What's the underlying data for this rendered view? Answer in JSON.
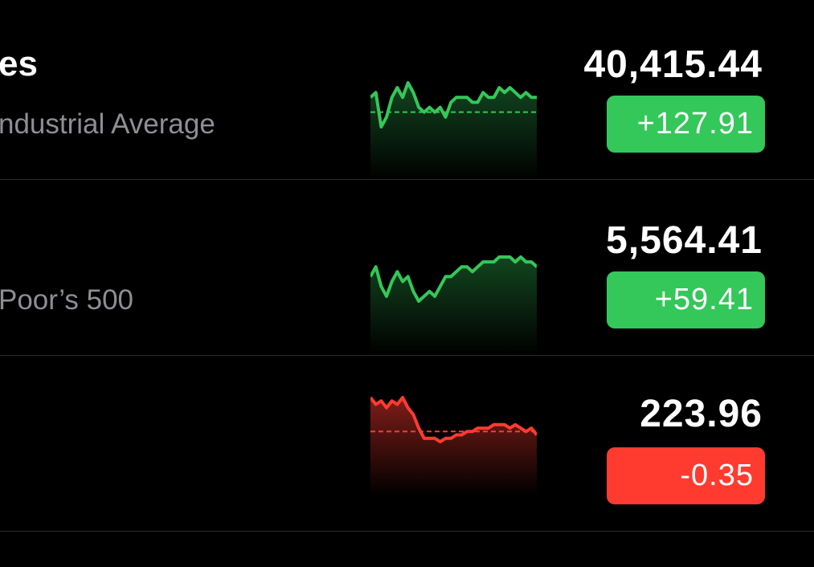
{
  "colors": {
    "background": "#000000",
    "primary_text": "#ffffff",
    "secondary_text": "#8e8e93",
    "separator": "#2c2c2e",
    "positive": "#34c759",
    "negative": "#ff3b30"
  },
  "stocks": [
    {
      "symbol": "es",
      "name": "ndustrial Average",
      "price": "40,415.44",
      "change": "+127.91",
      "direction": "up",
      "sparkline": [
        128,
        129,
        122,
        124,
        128,
        130,
        128,
        131,
        129,
        126,
        125,
        126,
        125,
        126,
        124,
        127,
        128,
        128,
        128,
        127,
        127,
        129,
        128,
        128,
        130,
        129,
        130,
        129,
        128,
        129,
        128,
        128
      ],
      "baseline": 125
    },
    {
      "symbol": "",
      "name": "Poor’s 500",
      "price": "5,564.41",
      "change": "+59.41",
      "direction": "up",
      "sparkline": [
        131,
        133,
        129,
        127,
        130,
        132,
        130,
        131,
        128,
        126,
        127,
        128,
        127,
        129,
        131,
        131,
        132,
        133,
        133,
        132,
        133,
        134,
        134,
        134,
        135,
        135,
        135,
        134,
        135,
        134,
        134,
        133
      ],
      "baseline": null
    },
    {
      "symbol": "",
      "name": "",
      "price": "223.96",
      "change": "-0.35",
      "direction": "down",
      "sparkline": [
        226,
        224,
        225,
        223,
        225,
        224,
        226,
        223,
        221,
        217,
        214,
        214,
        214,
        213,
        214,
        214,
        215,
        215,
        216,
        216,
        217,
        217,
        217,
        218,
        218,
        218,
        217,
        218,
        217,
        216,
        217,
        215
      ],
      "baseline": 216
    }
  ]
}
